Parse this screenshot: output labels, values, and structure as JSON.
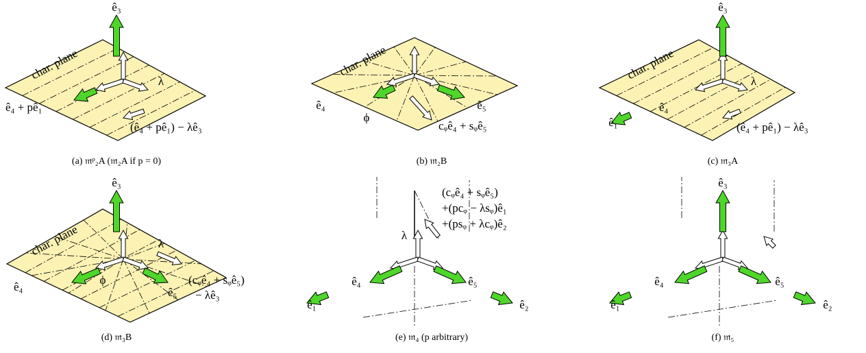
{
  "panels": [
    {
      "caption": "(a) 𝔪ᵖ₂A (𝔪₂A if p = 0)",
      "labels": [
        "ê₃",
        "char. plane",
        "λ",
        "ê₄ + pê₁",
        "(ê₄ + pê₁) − λê₃"
      ]
    },
    {
      "caption": "(b) 𝔪₂B",
      "labels": [
        "char. plane",
        "ê₄",
        "ϕ",
        "ê₅",
        "cᵩê₄ + sᵩê₅"
      ]
    },
    {
      "caption": "(c) 𝔪₃A",
      "labels": [
        "ê₃",
        "char. plane",
        "λ",
        "ê₄",
        "ê₁",
        "(ê₄ + pê₁) − λê₃"
      ]
    },
    {
      "caption": "(d) 𝔪₃B",
      "labels": [
        "ê₃",
        "char. plane",
        "λ",
        "ê₄",
        "ϕ",
        "ê₅",
        "(cᵩê₄ + sᵩê₅)",
        "− λê₃"
      ]
    },
    {
      "caption": "(e) 𝔪₄ (p arbitrary)",
      "labels": [
        "(cᵩê₄ + sᵩê₅)",
        "+(pcᵩ − λsᵩ)ê₁",
        "+(psᵩ + λcᵩ)ê₂",
        "λ",
        "ê₄",
        "ê₅",
        "ê₁",
        "ê₂"
      ]
    },
    {
      "caption": "(f) 𝔪₅",
      "labels": [
        "ê₃",
        "ê₄",
        "ê₅",
        "ê₁",
        "ê₂"
      ]
    }
  ]
}
